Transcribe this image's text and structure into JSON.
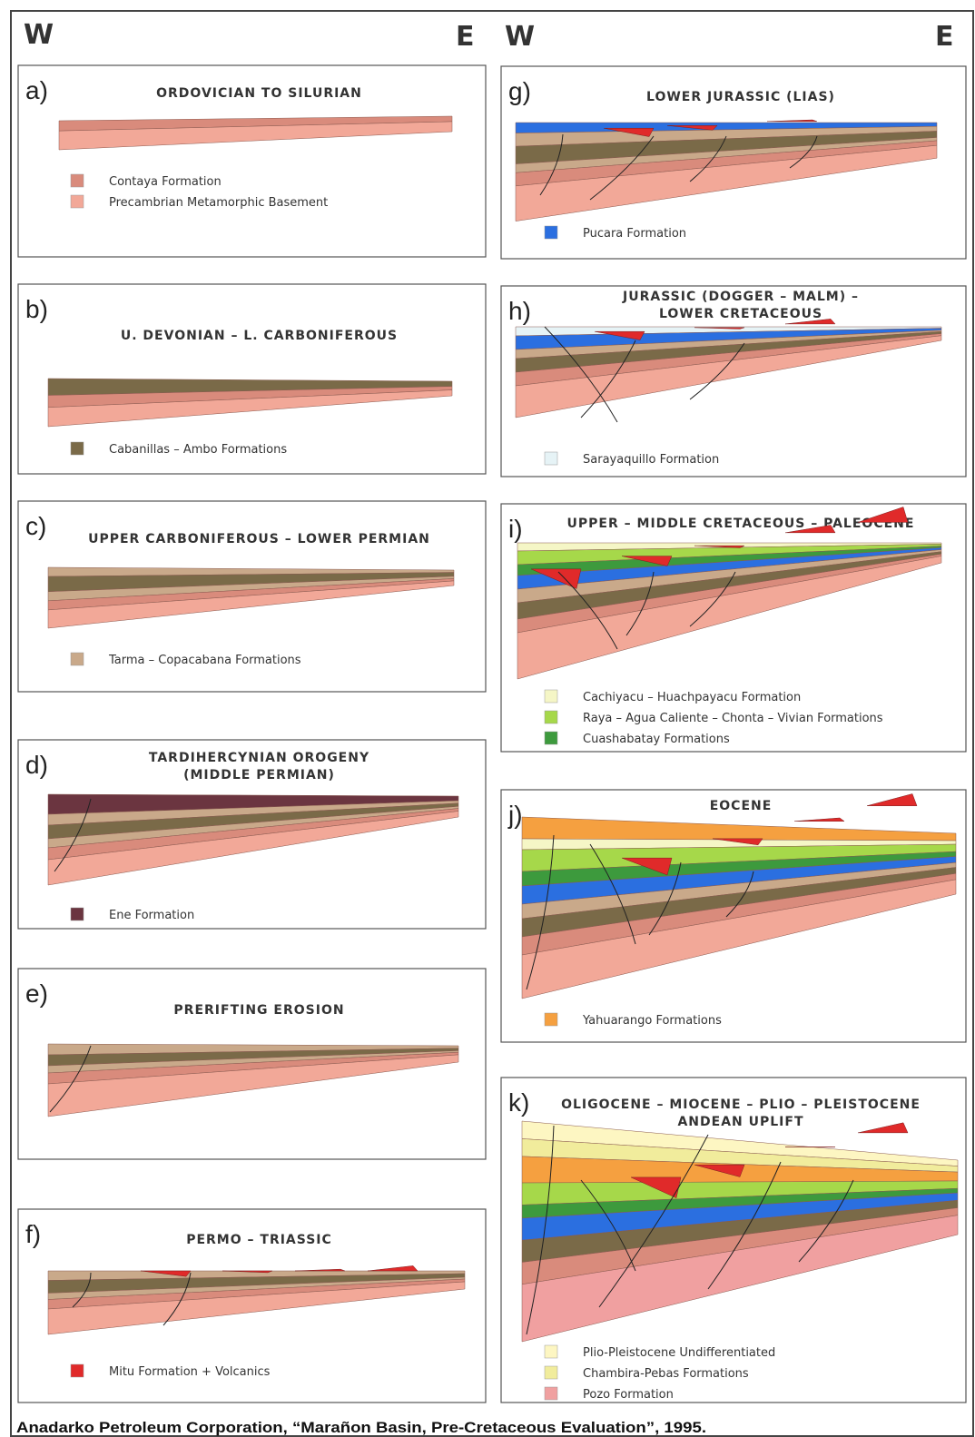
{
  "header": {
    "left_w": "W",
    "left_e": "E",
    "right_w": "W",
    "right_e": "E"
  },
  "panels": [
    {
      "letter": "a)",
      "title": [
        "ORDOVICIAN TO SILURIAN"
      ],
      "legend": [
        "Contaya Formation",
        "Precambrian Metamorphic Basement"
      ]
    },
    {
      "letter": "b)",
      "title": [
        "U. DEVONIAN – L. CARBONIFEROUS"
      ],
      "legend": [
        "Cabanillas – Ambo Formations"
      ]
    },
    {
      "letter": "c)",
      "title": [
        "UPPER CARBONIFEROUS – LOWER PERMIAN"
      ],
      "legend": [
        "Tarma – Copacabana Formations"
      ]
    },
    {
      "letter": "d)",
      "title": [
        "TARDIHERCYNIAN OROGENY",
        "(MIDDLE PERMIAN)"
      ],
      "legend": [
        "Ene Formation"
      ]
    },
    {
      "letter": "e)",
      "title": [
        "PRERIFTING EROSION"
      ],
      "legend": []
    },
    {
      "letter": "f)",
      "title": [
        "PERMO – TRIASSIC"
      ],
      "legend": [
        "Mitu Formation + Volcanics"
      ]
    },
    {
      "letter": "g)",
      "title": [
        "LOWER JURASSIC (LIAS)"
      ],
      "legend": [
        "Pucara Formation"
      ]
    },
    {
      "letter": "h)",
      "title": [
        "JURASSIC (DOGGER – MALM) –",
        "LOWER CRETACEOUS"
      ],
      "legend": [
        "Sarayaquillo Formation"
      ]
    },
    {
      "letter": "i)",
      "title": [
        "UPPER – MIDDLE CRETACEOUS – PALEOCENE"
      ],
      "legend": [
        "Cachiyacu – Huachpayacu Formation",
        "Raya – Agua Caliente – Chonta – Vivian Formations",
        "Cuashabatay Formations"
      ]
    },
    {
      "letter": "j)",
      "title": [
        "EOCENE"
      ],
      "legend": [
        "Yahuarango Formations"
      ]
    },
    {
      "letter": "k)",
      "title": [
        "OLIGOCENE – MIOCENE – PLIO – PLEISTOCENE",
        "ANDEAN UPLIFT"
      ],
      "legend": [
        "Plio-Pleistocene Undifferentiated",
        "Chambira-Pebas Formations",
        "Pozo Formation"
      ]
    }
  ],
  "caption": "Anadarko Petroleum Corporation, “Marañon Basin, Pre-Cretaceous Evaluation”, 1995."
}
